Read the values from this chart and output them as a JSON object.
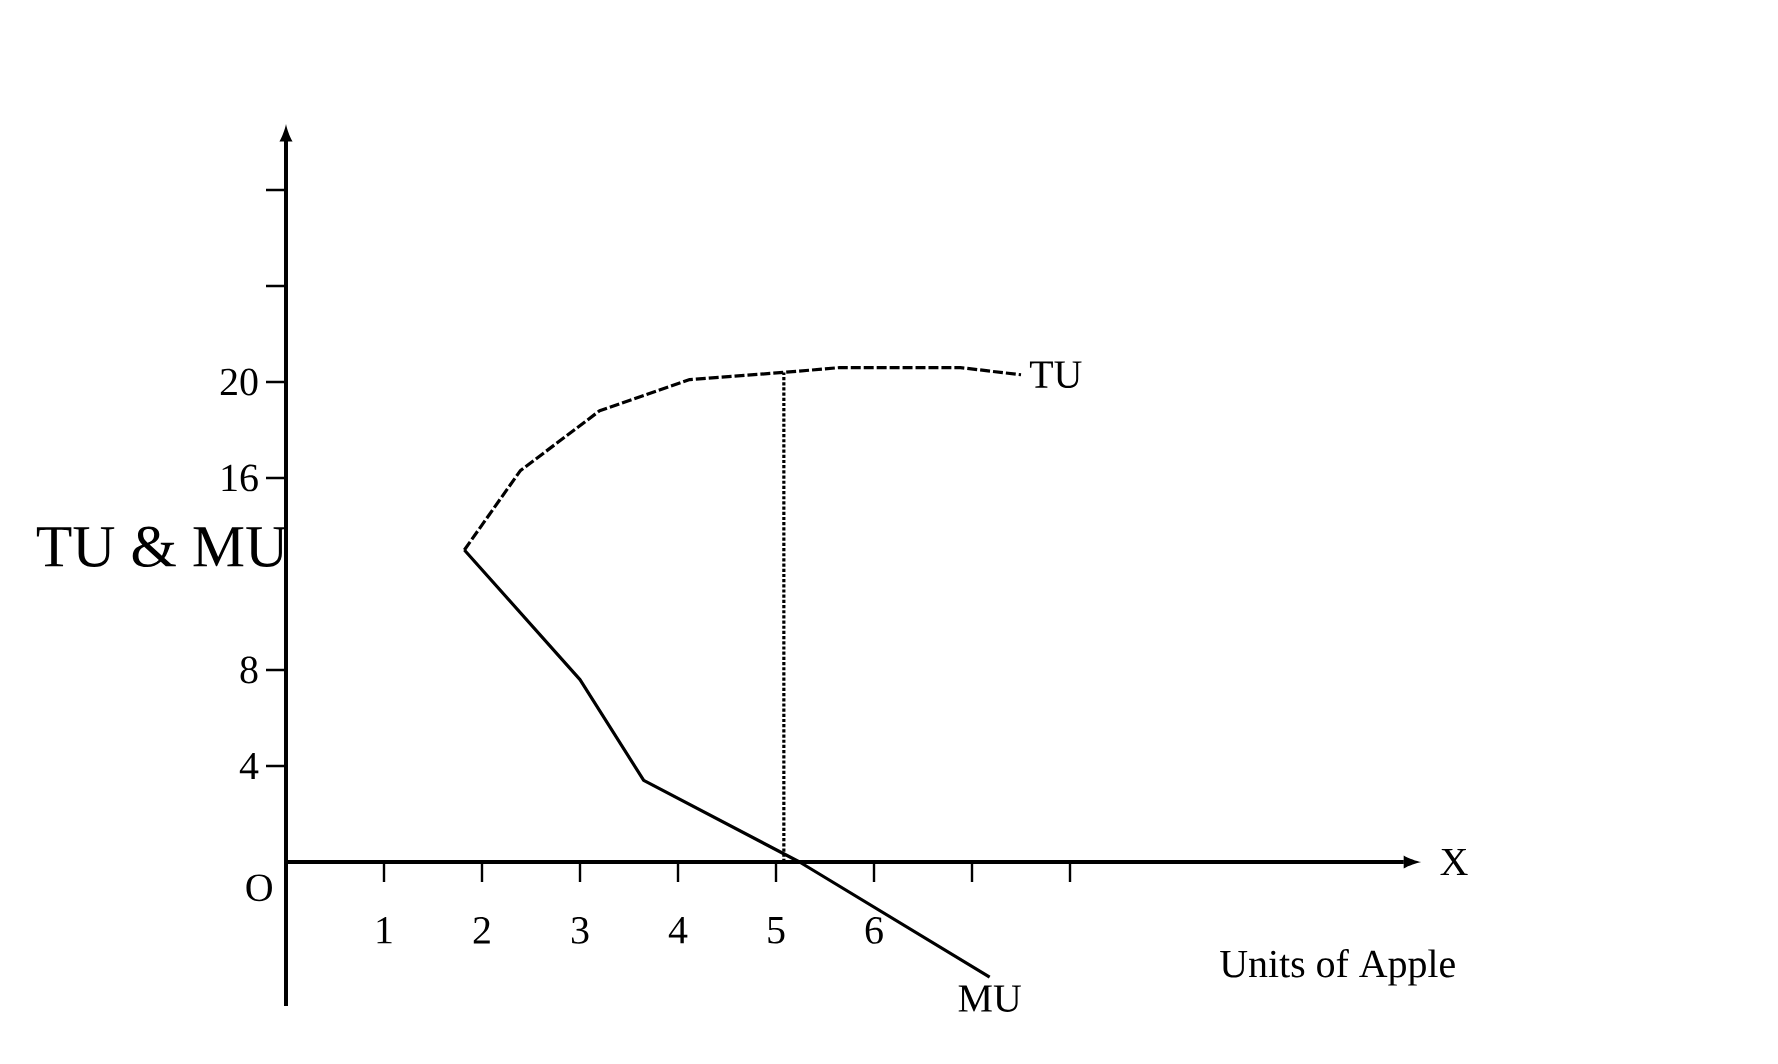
{
  "chart_data": {
    "type": "line",
    "xlabel": "Units of Apple",
    "ylabel": "TU & MU",
    "xlim": [
      0,
      11.4
    ],
    "ylim": [
      -6,
      30
    ],
    "xticks": [
      1,
      2,
      3,
      4,
      5,
      6,
      {
        "value": 7,
        "label": null
      },
      {
        "value": 8,
        "label": null
      }
    ],
    "yticks": [
      4,
      8,
      16,
      20,
      {
        "value": 24,
        "label": null
      },
      {
        "value": 28,
        "label": null
      }
    ],
    "marker": "none",
    "grid": false,
    "series": [
      {
        "name": "TU",
        "color": "#000000",
        "line_style": "dashed",
        "x": [
          1.82,
          2.39,
          3.2,
          4.12,
          5.08,
          5.65,
          6.88,
          7.5
        ],
        "values": [
          13,
          16.3,
          18.8,
          20.1,
          20.4,
          20.6,
          20.6,
          20.3
        ]
      },
      {
        "name": "MU",
        "color": "#000000",
        "line_style": "solid",
        "x": [
          1.82,
          3.0,
          3.65,
          5.24,
          7.18
        ],
        "values": [
          13,
          7.6,
          3.4,
          0,
          -4.8
        ]
      },
      {
        "color": "#000000",
        "line_style": "dotted",
        "x": [
          5.08,
          5.08
        ],
        "values": [
          0,
          20.4
        ]
      }
    ],
    "annotations": [
      "O",
      "X"
    ]
  }
}
